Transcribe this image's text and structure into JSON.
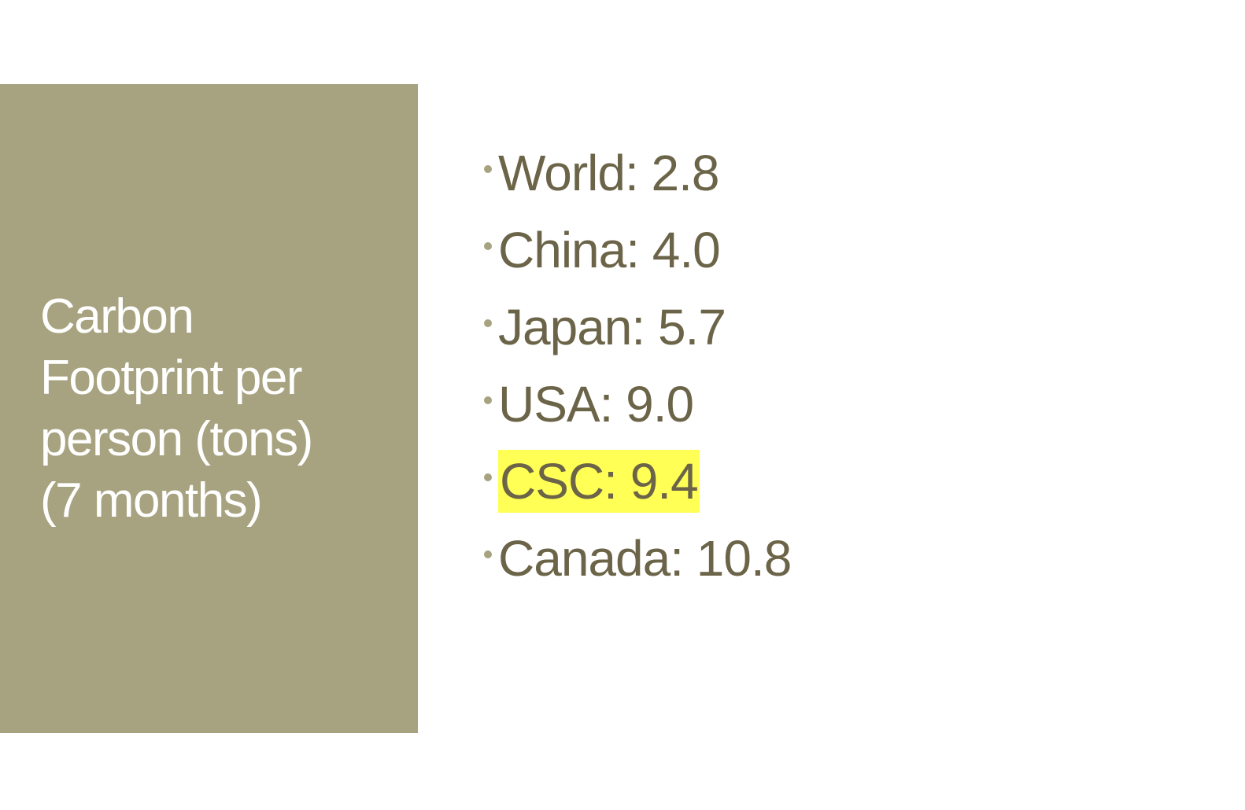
{
  "colors": {
    "panel": "#a7a27f",
    "bullet": "#a7a27f",
    "bullet_text": "#6b6448",
    "title_text": "#ffffff",
    "highlight": "#ffff55"
  },
  "title": {
    "lines": [
      "Carbon",
      "Footprint per",
      "person (tons)",
      "(7 months)"
    ]
  },
  "bullets": [
    {
      "text": "World: 2.8"
    },
    {
      "text": "China: 4.0"
    },
    {
      "text": "Japan: 5.7"
    },
    {
      "text": "USA: 9.0"
    },
    {
      "text": "CSC: 9.4",
      "highlighted": true
    },
    {
      "text": "Canada: 10.8"
    }
  ]
}
